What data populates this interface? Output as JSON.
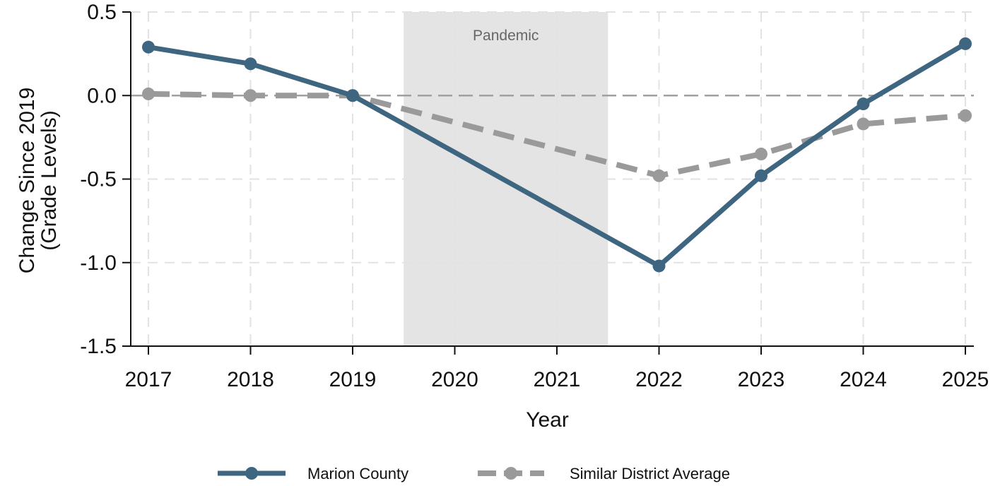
{
  "chart_data": {
    "type": "line",
    "title": "",
    "xlabel": "Year",
    "ylabel_lines": [
      "Change Since 2019",
      "(Grade Levels)"
    ],
    "categories": [
      "2017",
      "2018",
      "2019",
      "2020",
      "2021",
      "2022",
      "2023",
      "2024",
      "2025"
    ],
    "yticks": [
      "0.5",
      "0.0",
      "-0.5",
      "-1.0",
      "-1.5"
    ],
    "ylim": [
      -1.5,
      0.5
    ],
    "grid": true,
    "shaded_region": {
      "label": "Pandemic",
      "from": 2019.5,
      "to": 2021.5
    },
    "reference_line": 0,
    "series": [
      {
        "name": "Marion County",
        "style": "solid",
        "color": "#3e6680",
        "points": [
          {
            "x": 2017,
            "y": 0.29
          },
          {
            "x": 2018,
            "y": 0.19
          },
          {
            "x": 2019,
            "y": 0.0
          },
          {
            "x": 2022,
            "y": -1.02
          },
          {
            "x": 2023,
            "y": -0.48
          },
          {
            "x": 2024,
            "y": -0.05
          },
          {
            "x": 2025,
            "y": 0.31
          }
        ]
      },
      {
        "name": "Similar District Average",
        "style": "dashed",
        "color": "#9a9a9a",
        "points": [
          {
            "x": 2017,
            "y": 0.01
          },
          {
            "x": 2018,
            "y": 0.0
          },
          {
            "x": 2019,
            "y": 0.0
          },
          {
            "x": 2022,
            "y": -0.48
          },
          {
            "x": 2023,
            "y": -0.35
          },
          {
            "x": 2024,
            "y": -0.17
          },
          {
            "x": 2025,
            "y": -0.12
          }
        ]
      }
    ],
    "legend_position": "bottom"
  }
}
